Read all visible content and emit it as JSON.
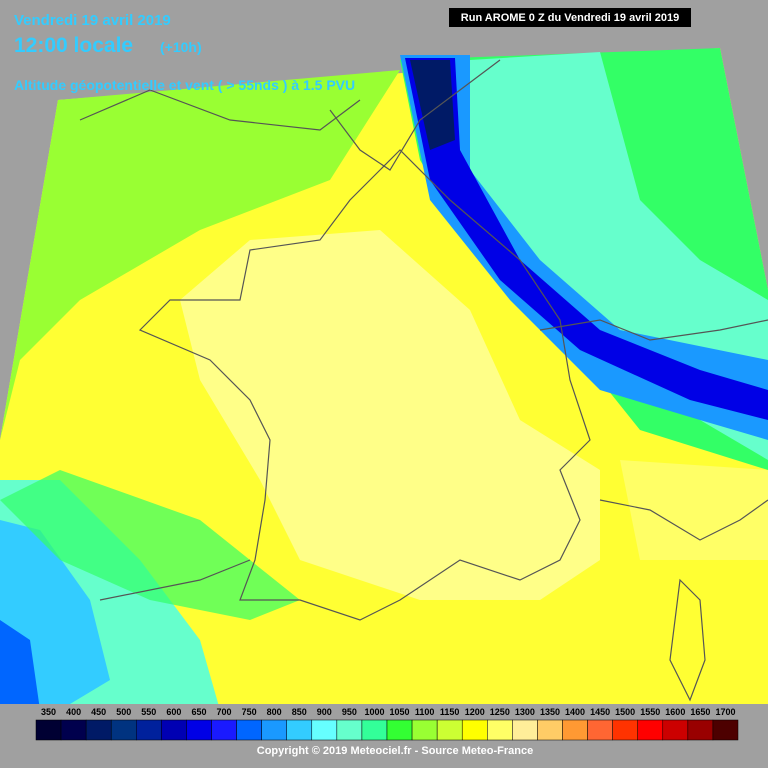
{
  "header": {
    "date": "Vendredi 19 avril 2019",
    "time": "12:00 locale",
    "lead": "(+10h)",
    "field": "Altitude géopotentielle et vent ( > 55nds ) à 1.5 PVU",
    "run": "Run AROME 0 Z du Vendredi 19 avril 2019"
  },
  "legend": {
    "values": [
      350,
      400,
      450,
      500,
      550,
      600,
      650,
      700,
      750,
      800,
      850,
      900,
      950,
      1000,
      1050,
      1100,
      1150,
      1200,
      1250,
      1300,
      1350,
      1400,
      1450,
      1500,
      1550,
      1600,
      1650,
      1700
    ],
    "colors": [
      "#000033",
      "#00004d",
      "#001a66",
      "#003380",
      "#00219c",
      "#0000b3",
      "#0000e6",
      "#1a1aff",
      "#0066ff",
      "#1a99ff",
      "#33ccff",
      "#66ffff",
      "#66ffcc",
      "#33ff99",
      "#33ff33",
      "#99ff33",
      "#ccff33",
      "#ffff00",
      "#ffff66",
      "#ffee99",
      "#ffcc66",
      "#ff9933",
      "#ff6633",
      "#ff3300",
      "#ff0000",
      "#cc0000",
      "#990000",
      "#4d0000"
    ]
  },
  "footer": {
    "copyright": "Copyright © 2019 Meteociel.fr - Source Meteo-France"
  }
}
